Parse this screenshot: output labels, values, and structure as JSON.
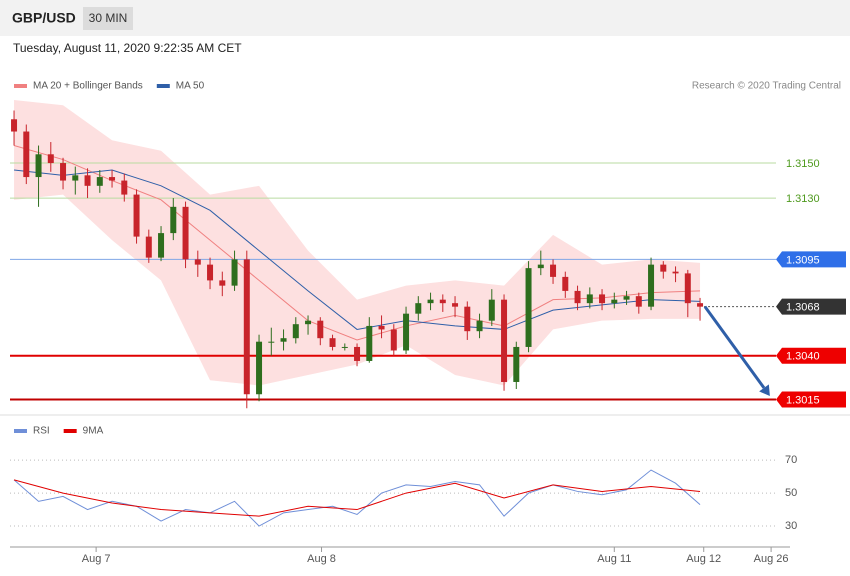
{
  "header": {
    "symbol": "GBP/USD",
    "timeframe": "30 MIN",
    "timestamp": "Tuesday, August 11, 2020 9:22:35 AM CET"
  },
  "chart_data": [
    {
      "type": "candlestick",
      "legend": [
        {
          "name": "MA 20 + Bollinger Bands",
          "color": "#f08080"
        },
        {
          "name": "MA 50",
          "color": "#2f5fa8"
        }
      ],
      "credit": "Research © 2020 Trading Central",
      "xlim": [
        -0.33,
        62.2
      ],
      "ylim": [
        1.3009,
        1.3186
      ],
      "xticks": [
        {
          "value": 6.7,
          "label": "Aug 7"
        },
        {
          "value": 25.1,
          "label": "Aug 8"
        },
        {
          "value": 49,
          "label": "Aug 11"
        },
        {
          "value": 56.3,
          "label": "Aug 12"
        },
        {
          "value": 61.8,
          "label": "Aug 26"
        }
      ],
      "up_color": "#2e6e1e",
      "down_color": "#c8242b",
      "candles": [
        [
          1.3175,
          1.318,
          1.316,
          1.3168
        ],
        [
          1.3168,
          1.3172,
          1.3138,
          1.3142
        ],
        [
          1.3142,
          1.316,
          1.3125,
          1.3155
        ],
        [
          1.3155,
          1.3162,
          1.3145,
          1.315
        ],
        [
          1.315,
          1.3153,
          1.3135,
          1.314
        ],
        [
          1.314,
          1.3148,
          1.3132,
          1.3143
        ],
        [
          1.3143,
          1.3147,
          1.313,
          1.3137
        ],
        [
          1.3137,
          1.3146,
          1.3133,
          1.3142
        ],
        [
          1.3142,
          1.3146,
          1.3136,
          1.314
        ],
        [
          1.314,
          1.3144,
          1.3128,
          1.3132
        ],
        [
          1.3132,
          1.3135,
          1.3104,
          1.3108
        ],
        [
          1.3108,
          1.3112,
          1.3093,
          1.3096
        ],
        [
          1.3096,
          1.3114,
          1.3094,
          1.311
        ],
        [
          1.311,
          1.313,
          1.3106,
          1.3125
        ],
        [
          1.3125,
          1.3128,
          1.309,
          1.3095
        ],
        [
          1.3095,
          1.31,
          1.3085,
          1.3092
        ],
        [
          1.3092,
          1.3096,
          1.3078,
          1.3083
        ],
        [
          1.3083,
          1.3088,
          1.3074,
          1.308
        ],
        [
          1.308,
          1.31,
          1.3077,
          1.3095
        ],
        [
          1.3095,
          1.31,
          1.301,
          1.3018
        ],
        [
          1.3018,
          1.3052,
          1.3014,
          1.3048
        ],
        [
          1.3048,
          1.3056,
          1.304,
          1.3048
        ],
        [
          1.3048,
          1.3055,
          1.3043,
          1.305
        ],
        [
          1.305,
          1.3062,
          1.3047,
          1.3058
        ],
        [
          1.3058,
          1.3063,
          1.3052,
          1.306
        ],
        [
          1.306,
          1.3062,
          1.3046,
          1.305
        ],
        [
          1.305,
          1.3052,
          1.3043,
          1.3045
        ],
        [
          1.3045,
          1.3047,
          1.3043,
          1.3045
        ],
        [
          1.3045,
          1.3047,
          1.3034,
          1.3037
        ],
        [
          1.3037,
          1.3062,
          1.3036,
          1.3057
        ],
        [
          1.3057,
          1.3063,
          1.305,
          1.3055
        ],
        [
          1.3055,
          1.3058,
          1.304,
          1.3043
        ],
        [
          1.3043,
          1.3068,
          1.3041,
          1.3064
        ],
        [
          1.3064,
          1.3074,
          1.306,
          1.307
        ],
        [
          1.307,
          1.3076,
          1.3066,
          1.3072
        ],
        [
          1.3072,
          1.3075,
          1.3065,
          1.307
        ],
        [
          1.307,
          1.3074,
          1.3062,
          1.3068
        ],
        [
          1.3068,
          1.3071,
          1.3049,
          1.3054
        ],
        [
          1.3054,
          1.3064,
          1.305,
          1.306
        ],
        [
          1.306,
          1.3078,
          1.3057,
          1.3072
        ],
        [
          1.3072,
          1.3075,
          1.302,
          1.3025
        ],
        [
          1.3025,
          1.3048,
          1.3021,
          1.3045
        ],
        [
          1.3045,
          1.3094,
          1.3042,
          1.309
        ],
        [
          1.309,
          1.31,
          1.3086,
          1.3092
        ],
        [
          1.3092,
          1.3095,
          1.3081,
          1.3085
        ],
        [
          1.3085,
          1.3088,
          1.3073,
          1.3077
        ],
        [
          1.3077,
          1.308,
          1.3066,
          1.307
        ],
        [
          1.307,
          1.3079,
          1.3067,
          1.3075
        ],
        [
          1.3075,
          1.3078,
          1.3066,
          1.307
        ],
        [
          1.307,
          1.3076,
          1.3067,
          1.3072
        ],
        [
          1.3072,
          1.3077,
          1.3069,
          1.3074
        ],
        [
          1.3074,
          1.3076,
          1.3064,
          1.3068
        ],
        [
          1.3068,
          1.3096,
          1.3066,
          1.3092
        ],
        [
          1.3092,
          1.3094,
          1.3084,
          1.3088
        ],
        [
          1.3088,
          1.3091,
          1.3082,
          1.3087
        ],
        [
          1.3087,
          1.3089,
          1.3062,
          1.307
        ],
        [
          1.307,
          1.3073,
          1.306,
          1.3068
        ]
      ],
      "bands": {
        "color": "#fde0e0",
        "x": [
          0,
          4,
          8,
          12,
          16,
          20,
          24,
          28,
          32,
          36,
          40,
          44,
          48,
          52,
          56
        ],
        "upper": [
          1.3186,
          1.3183,
          1.3163,
          1.3157,
          1.3132,
          1.3137,
          1.31,
          1.3072,
          1.308,
          1.3083,
          1.308,
          1.3109,
          1.3092,
          1.3095,
          1.3093
        ],
        "lower": [
          1.3129,
          1.3132,
          1.3106,
          1.3083,
          1.3026,
          1.3023,
          1.3029,
          1.3035,
          1.3046,
          1.3029,
          1.3023,
          1.3055,
          1.306,
          1.3061,
          1.3061
        ]
      },
      "series": [
        {
          "name": "MA 20",
          "color": "#f08080",
          "x": [
            0,
            4,
            8,
            12,
            16,
            20,
            24,
            28,
            32,
            36,
            40,
            44,
            48,
            52,
            56
          ],
          "values": [
            1.316,
            1.3152,
            1.314,
            1.3129,
            1.3106,
            1.3083,
            1.306,
            1.3049,
            1.3057,
            1.3063,
            1.3057,
            1.3072,
            1.3073,
            1.3076,
            1.3077
          ]
        },
        {
          "name": "MA 50",
          "color": "#2f5fa8",
          "x": [
            0,
            4,
            8,
            12,
            16,
            20,
            24,
            28,
            32,
            36,
            40,
            44,
            48,
            52,
            56
          ],
          "values": [
            1.3146,
            1.3143,
            1.3146,
            1.3137,
            1.3123,
            1.31,
            1.3077,
            1.3055,
            1.306,
            1.3057,
            1.3055,
            1.3066,
            1.3069,
            1.3072,
            1.3071
          ]
        }
      ],
      "levels": [
        {
          "value": 1.315,
          "label": "1.3150",
          "line_color": "#b9dba0",
          "text_color": "#4f9a1e",
          "width": 1
        },
        {
          "value": 1.313,
          "label": "1.3130",
          "line_color": "#b9dba0",
          "text_color": "#4f9a1e",
          "width": 1
        },
        {
          "value": 1.3095,
          "label": "1.3095",
          "line_color": "#7fa6e6",
          "text_color": "#ffffff",
          "box_color": "#2f6fe8",
          "width": 1
        },
        {
          "value": 1.3068,
          "label": "1.3068",
          "line_color": "#555555",
          "text_color": "#ffffff",
          "box_color": "#333333",
          "width": 1,
          "dotted": true
        },
        {
          "value": 1.304,
          "label": "1.3040",
          "line_color": "#e00000",
          "text_color": "#ffffff",
          "box_color": "#ee0000",
          "width": 2
        },
        {
          "value": 1.3015,
          "label": "1.3015",
          "line_color": "#c00000",
          "text_color": "#ffffff",
          "box_color": "#ee0000",
          "width": 2
        }
      ],
      "forecast": {
        "color": "#2f5fa8",
        "from": [
          56.4,
          1.3068
        ],
        "to": [
          61.7,
          1.3017
        ]
      }
    },
    {
      "type": "line",
      "ylim": [
        21.5,
        78
      ],
      "yticks": [
        30,
        50,
        70
      ],
      "grid": true,
      "series": [
        {
          "name": "RSI",
          "color": "#6f8fd8",
          "x": [
            0,
            2,
            4,
            6,
            8,
            10,
            12,
            14,
            16,
            18,
            20,
            22,
            24,
            26,
            28,
            30,
            32,
            34,
            36,
            38,
            40,
            42,
            44,
            46,
            48,
            50,
            52,
            54,
            56
          ],
          "values": [
            58,
            45,
            48,
            40,
            45,
            42,
            33,
            40,
            38,
            45,
            30,
            38,
            40,
            42,
            37,
            50,
            55,
            54,
            57,
            55,
            36,
            50,
            55,
            51,
            49,
            52,
            64,
            56,
            43
          ]
        },
        {
          "name": "9MA",
          "color": "#e00000",
          "x": [
            0,
            4,
            8,
            12,
            16,
            20,
            24,
            28,
            32,
            36,
            40,
            44,
            48,
            52,
            56
          ],
          "values": [
            58,
            50,
            44,
            40,
            38,
            36,
            42,
            40,
            50,
            56,
            47,
            55,
            51,
            54,
            51
          ]
        }
      ]
    }
  ]
}
